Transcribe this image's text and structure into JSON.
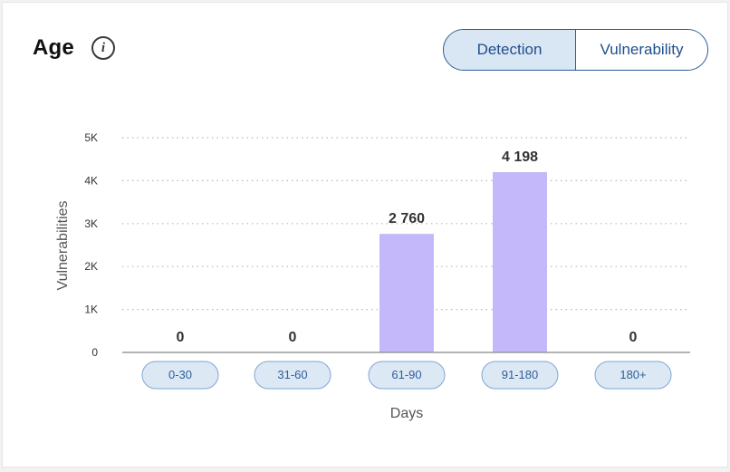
{
  "header": {
    "title": "Age",
    "info_icon": "info-icon"
  },
  "toggle": {
    "options": [
      "Detection",
      "Vulnerability"
    ],
    "selected": "Detection"
  },
  "colors": {
    "bar": "#c4b8fb",
    "pill_fill": "#dde8f5",
    "pill_border": "#7fa6d3",
    "pill_text": "#2d5f9a",
    "grid": "#b8b8b8",
    "toggle_active": "#d9e6f4",
    "toggle_border": "#2a5c9a"
  },
  "chart_data": {
    "type": "bar",
    "categories": [
      "0-30",
      "31-60",
      "61-90",
      "91-180",
      "180+"
    ],
    "values": [
      0,
      0,
      2760,
      4198,
      0
    ],
    "value_labels": [
      "0",
      "0",
      "2 760",
      "4 198",
      "0"
    ],
    "yticks": [
      0,
      1000,
      2000,
      3000,
      4000,
      5000
    ],
    "ytick_labels": [
      "0",
      "1K",
      "2K",
      "3K",
      "4K",
      "5K"
    ],
    "ylim": [
      0,
      5000
    ],
    "xlabel": "Days",
    "ylabel": "Vulnerabilities",
    "grid": "horizontal dotted"
  }
}
